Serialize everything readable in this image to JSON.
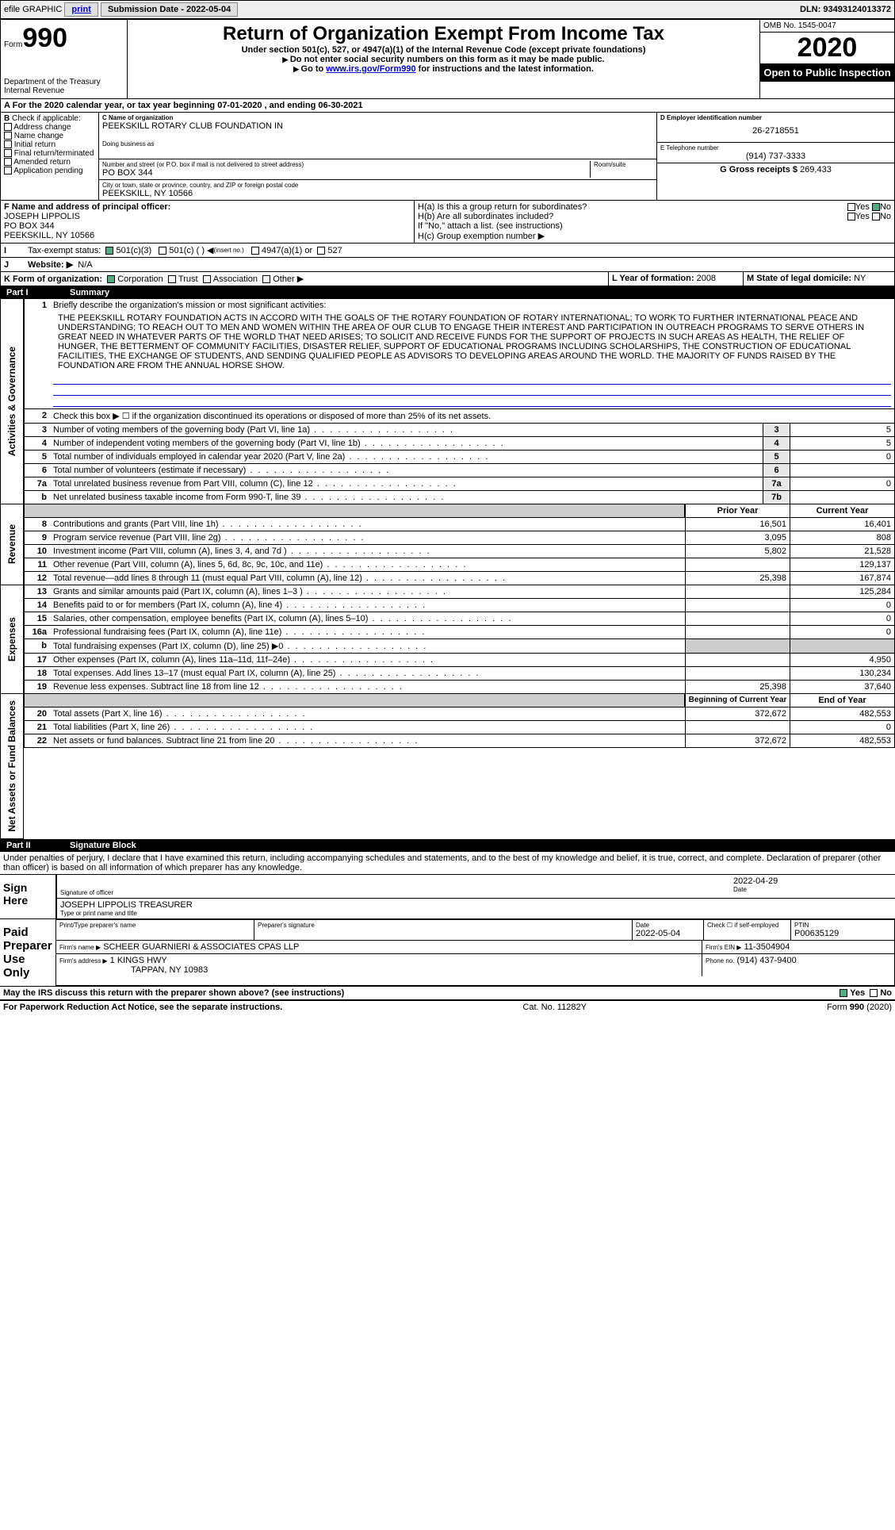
{
  "topbar": {
    "efile": "efile GRAPHIC",
    "print": "print",
    "sub_label": "Submission Date - 2022-05-04",
    "dln": "DLN: 93493124013372"
  },
  "header": {
    "form_small": "Form",
    "form_num": "990",
    "dept": "Department of the Treasury",
    "irs": "Internal Revenue",
    "title": "Return of Organization Exempt From Income Tax",
    "subtitle": "Under section 501(c), 527, or 4947(a)(1) of the Internal Revenue Code (except private foundations)",
    "note1": "Do not enter social security numbers on this form as it may be made public.",
    "note2_pre": "Go to ",
    "note2_link": "www.irs.gov/Form990",
    "note2_post": " for instructions and the latest information.",
    "omb": "OMB No. 1545-0047",
    "year": "2020",
    "inspection": "Open to Public Inspection"
  },
  "a": {
    "text": "For the 2020 calendar year, or tax year beginning 07-01-2020  , and ending 06-30-2021"
  },
  "b": {
    "hdr": "Check if applicable:",
    "opts": [
      "Address change",
      "Name change",
      "Initial return",
      "Final return/terminated",
      "Amended return",
      "Application pending"
    ],
    "b_pre": "B"
  },
  "c": {
    "name_lbl": "C Name of organization",
    "name": "PEEKSKILL ROTARY CLUB FOUNDATION IN",
    "dba_lbl": "Doing business as",
    "addr_lbl": "Number and street (or P.O. box if mail is not delivered to street address)",
    "room_lbl": "Room/suite",
    "addr": "PO BOX 344",
    "city_lbl": "City or town, state or province, country, and ZIP or foreign postal code",
    "city": "PEEKSKILL, NY  10566"
  },
  "d": {
    "lbl": "D Employer identification number",
    "val": "26-2718551"
  },
  "e": {
    "lbl": "E Telephone number",
    "val": "(914) 737-3333"
  },
  "g": {
    "lbl": "G Gross receipts $",
    "val": "269,433"
  },
  "f": {
    "lbl": "F  Name and address of principal officer:",
    "name": "JOSEPH LIPPOLIS",
    "addr1": "PO BOX 344",
    "addr2": "PEEKSKILL, NY  10566"
  },
  "h": {
    "a": "H(a)  Is this a group return for subordinates?",
    "b": "H(b)  Are all subordinates included?",
    "yes": "Yes",
    "no": "No",
    "note": "If \"No,\" attach a list. (see instructions)",
    "c": "H(c)  Group exemption number ▶"
  },
  "i": {
    "lbl": "Tax-exempt status:",
    "o1": "501(c)(3)",
    "o2": "501(c) (  )",
    "o2_note": "(insert no.)",
    "o3": "4947(a)(1) or",
    "o4": "527"
  },
  "j": {
    "lbl": "Website: ▶",
    "val": "N/A",
    "letter": "J"
  },
  "k": {
    "lbl": "K Form of organization:",
    "opts": [
      "Corporation",
      "Trust",
      "Association",
      "Other ▶"
    ],
    "l_lbl": "L Year of formation:",
    "l_val": "2008",
    "m_lbl": "M State of legal domicile:",
    "m_val": "NY"
  },
  "part1": {
    "num": "Part I",
    "title": "Summary",
    "vert1": "Activities & Governance",
    "vert2": "Revenue",
    "vert3": "Expenses",
    "vert4": "Net Assets or Fund Balances",
    "l1": "Briefly describe the organization's mission or most significant activities:",
    "mission": "THE PEEKSKILL ROTARY FOUNDATION ACTS IN ACCORD WITH THE GOALS OF THE ROTARY FOUNDATION OF ROTARY INTERNATIONAL; TO WORK TO FURTHER INTERNATIONAL PEACE AND UNDERSTANDING; TO REACH OUT TO MEN AND WOMEN WITHIN THE AREA OF OUR CLUB TO ENGAGE THEIR INTEREST AND PARTICIPATION IN OUTREACH PROGRAMS TO SERVE OTHERS IN GREAT NEED IN WHATEVER PARTS OF THE WORLD THAT NEED ARISES; TO SOLICIT AND RECEIVE FUNDS FOR THE SUPPORT OF PROJECTS IN SUCH AREAS AS HEALTH, THE RELIEF OF HUNGER, THE BETTERMENT OF COMMUNITY FACILITIES, DISASTER RELIEF, SUPPORT OF EDUCATIONAL PROGRAMS INCLUDING SCHOLARSHIPS, THE CONSTRUCTION OF EDUCATIONAL FACILITIES, THE EXCHANGE OF STUDENTS, AND SENDING QUALIFIED PEOPLE AS ADVISORS TO DEVELOPING AREAS AROUND THE WORLD. THE MAJORITY OF FUNDS RAISED BY THE FOUNDATION ARE FROM THE ANNUAL HORSE SHOW.",
    "l2": "Check this box ▶ ☐ if the organization discontinued its operations or disposed of more than 25% of its net assets.",
    "rows": [
      {
        "n": "3",
        "t": "Number of voting members of the governing body (Part VI, line 1a)",
        "b": "3",
        "v": "5"
      },
      {
        "n": "4",
        "t": "Number of independent voting members of the governing body (Part VI, line 1b)",
        "b": "4",
        "v": "5"
      },
      {
        "n": "5",
        "t": "Total number of individuals employed in calendar year 2020 (Part V, line 2a)",
        "b": "5",
        "v": "0"
      },
      {
        "n": "6",
        "t": "Total number of volunteers (estimate if necessary)",
        "b": "6",
        "v": ""
      },
      {
        "n": "7a",
        "t": "Total unrelated business revenue from Part VIII, column (C), line 12",
        "b": "7a",
        "v": "0"
      },
      {
        "n": "b",
        "t": "Net unrelated business taxable income from Form 990-T, line 39",
        "b": "7b",
        "v": ""
      }
    ],
    "col_prior": "Prior Year",
    "col_current": "Current Year",
    "rev": [
      {
        "n": "8",
        "t": "Contributions and grants (Part VIII, line 1h)",
        "p": "16,501",
        "c": "16,401"
      },
      {
        "n": "9",
        "t": "Program service revenue (Part VIII, line 2g)",
        "p": "3,095",
        "c": "808"
      },
      {
        "n": "10",
        "t": "Investment income (Part VIII, column (A), lines 3, 4, and 7d )",
        "p": "5,802",
        "c": "21,528"
      },
      {
        "n": "11",
        "t": "Other revenue (Part VIII, column (A), lines 5, 6d, 8c, 9c, 10c, and 11e)",
        "p": "",
        "c": "129,137"
      },
      {
        "n": "12",
        "t": "Total revenue—add lines 8 through 11 (must equal Part VIII, column (A), line 12)",
        "p": "25,398",
        "c": "167,874"
      }
    ],
    "exp": [
      {
        "n": "13",
        "t": "Grants and similar amounts paid (Part IX, column (A), lines 1–3 )",
        "p": "",
        "c": "125,284"
      },
      {
        "n": "14",
        "t": "Benefits paid to or for members (Part IX, column (A), line 4)",
        "p": "",
        "c": "0"
      },
      {
        "n": "15",
        "t": "Salaries, other compensation, employee benefits (Part IX, column (A), lines 5–10)",
        "p": "",
        "c": "0"
      },
      {
        "n": "16a",
        "t": "Professional fundraising fees (Part IX, column (A), line 11e)",
        "p": "",
        "c": "0"
      },
      {
        "n": "b",
        "t": "Total fundraising expenses (Part IX, column (D), line 25) ▶0",
        "p": "grey",
        "c": "grey"
      },
      {
        "n": "17",
        "t": "Other expenses (Part IX, column (A), lines 11a–11d, 11f–24e)",
        "p": "",
        "c": "4,950"
      },
      {
        "n": "18",
        "t": "Total expenses. Add lines 13–17 (must equal Part IX, column (A), line 25)",
        "p": "",
        "c": "130,234"
      },
      {
        "n": "19",
        "t": "Revenue less expenses. Subtract line 18 from line 12",
        "p": "25,398",
        "c": "37,640"
      }
    ],
    "col_begin": "Beginning of Current Year",
    "col_end": "End of Year",
    "net": [
      {
        "n": "20",
        "t": "Total assets (Part X, line 16)",
        "p": "372,672",
        "c": "482,553"
      },
      {
        "n": "21",
        "t": "Total liabilities (Part X, line 26)",
        "p": "",
        "c": "0"
      },
      {
        "n": "22",
        "t": "Net assets or fund balances. Subtract line 21 from line 20",
        "p": "372,672",
        "c": "482,553"
      }
    ]
  },
  "part2": {
    "num": "Part II",
    "title": "Signature Block",
    "perjury": "Under penalties of perjury, I declare that I have examined this return, including accompanying schedules and statements, and to the best of my knowledge and belief, it is true, correct, and complete. Declaration of preparer (other than officer) is based on all information of which preparer has any knowledge.",
    "sign_here": "Sign Here",
    "sig_officer": "Signature of officer",
    "sig_date": "Date",
    "sig_date_val": "2022-04-29",
    "sig_name": "JOSEPH LIPPOLIS  TREASURER",
    "sig_name_lbl": "Type or print name and title",
    "paid": "Paid Preparer Use Only",
    "p_name_lbl": "Print/Type preparer's name",
    "p_sig_lbl": "Preparer's signature",
    "p_date_lbl": "Date",
    "p_date": "2022-05-04",
    "p_se_lbl": "Check ☐ if self-employed",
    "p_ptin_lbl": "PTIN",
    "p_ptin": "P00635129",
    "firm_name_lbl": "Firm's name     ▶",
    "firm_name": "SCHEER GUARNIERI & ASSOCIATES CPAS LLP",
    "firm_ein_lbl": "Firm's EIN ▶",
    "firm_ein": "11-3504904",
    "firm_addr_lbl": "Firm's address ▶",
    "firm_addr1": "1 KINGS HWY",
    "firm_addr2": "TAPPAN, NY  10983",
    "phone_lbl": "Phone no.",
    "phone": "(914) 437-9400",
    "discuss": "May the IRS discuss this return with the preparer shown above? (see instructions)",
    "yes": "Yes",
    "no": "No"
  },
  "footer": {
    "pra": "For Paperwork Reduction Act Notice, see the separate instructions.",
    "cat": "Cat. No. 11282Y",
    "form": "Form 990 (2020)"
  }
}
